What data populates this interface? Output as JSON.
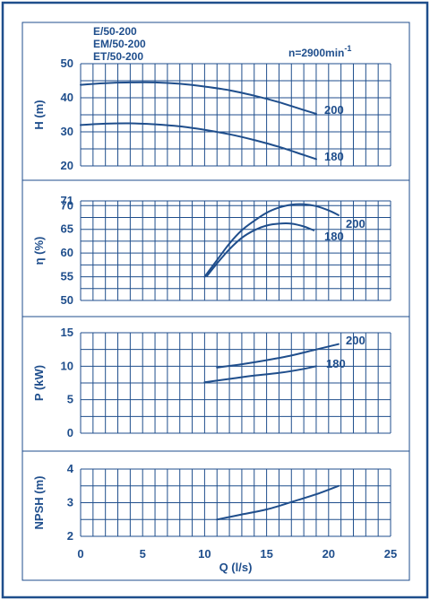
{
  "header": {
    "models": [
      "E/50-200",
      "EM/50-200",
      "ET/50-200"
    ],
    "speed": "n=2900min",
    "speed_sup": "-1"
  },
  "chart_data": [
    {
      "type": "line",
      "ylabel": "H (m)",
      "ylim": [
        20,
        50
      ],
      "yticks": [
        20,
        30,
        40,
        50
      ],
      "xlim": [
        0,
        25
      ],
      "grid": true,
      "series": [
        {
          "name": "200",
          "x": [
            0,
            2,
            4,
            6,
            8,
            10,
            12,
            14,
            16,
            18,
            19
          ],
          "y": [
            43.8,
            44.3,
            44.5,
            44.5,
            44.1,
            43.3,
            42.2,
            40.6,
            38.7,
            36.4,
            35.3
          ]
        },
        {
          "name": "180",
          "x": [
            0,
            2,
            4,
            6,
            8,
            10,
            12,
            14,
            16,
            18,
            19
          ],
          "y": [
            32.0,
            32.4,
            32.5,
            32.2,
            31.6,
            30.6,
            29.3,
            27.6,
            25.6,
            23.2,
            22.0
          ]
        }
      ]
    },
    {
      "type": "line",
      "ylabel": "η (%)",
      "ylim": [
        50,
        71
      ],
      "yticks": [
        50,
        55,
        60,
        65,
        70
      ],
      "ytick_top": 71,
      "xlim": [
        0,
        25
      ],
      "grid": true,
      "series": [
        {
          "name": "200",
          "x": [
            10,
            11,
            12,
            13,
            14,
            15,
            16,
            17,
            18,
            19,
            20,
            20.8
          ],
          "y": [
            55.0,
            58.5,
            62.0,
            64.8,
            66.8,
            68.5,
            69.6,
            70.2,
            70.3,
            69.9,
            69.0,
            68.0
          ]
        },
        {
          "name": "180",
          "x": [
            10.2,
            11,
            12,
            13,
            14,
            15,
            16,
            17,
            18,
            18.8
          ],
          "y": [
            55.2,
            57.8,
            60.8,
            63.2,
            64.8,
            65.8,
            66.2,
            66.2,
            65.6,
            64.8
          ]
        }
      ]
    },
    {
      "type": "line",
      "ylabel": "P (kW)",
      "ylim": [
        0,
        15
      ],
      "yticks": [
        0,
        5,
        10,
        15
      ],
      "xlim": [
        0,
        25
      ],
      "grid": true,
      "series": [
        {
          "name": "200",
          "x": [
            11,
            13,
            15,
            17,
            19,
            20.8
          ],
          "y": [
            9.8,
            10.3,
            10.9,
            11.6,
            12.5,
            13.3
          ]
        },
        {
          "name": "180",
          "x": [
            10,
            12,
            14,
            16,
            18,
            19
          ],
          "y": [
            7.6,
            8.1,
            8.6,
            9.0,
            9.6,
            10.0
          ]
        }
      ]
    },
    {
      "type": "line",
      "ylabel": "NPSH (m)",
      "ylim": [
        2,
        4
      ],
      "yticks": [
        2,
        3,
        4
      ],
      "xlim": [
        0,
        25
      ],
      "xticks": [
        0,
        5,
        10,
        15,
        20,
        25
      ],
      "xlabel": "Q (l/s)",
      "grid": true,
      "series": [
        {
          "name": "",
          "x": [
            11,
            13,
            15,
            17,
            19,
            20.8
          ],
          "y": [
            2.5,
            2.65,
            2.8,
            3.02,
            3.25,
            3.5
          ]
        }
      ]
    }
  ]
}
